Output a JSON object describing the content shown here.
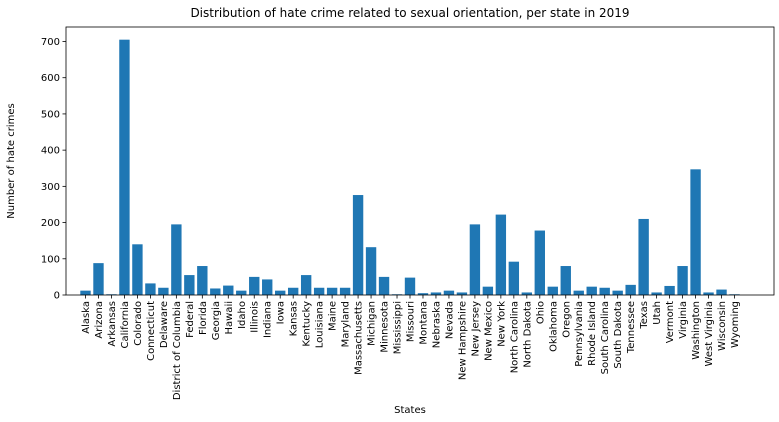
{
  "chart_data": {
    "type": "bar",
    "title": "Distribution of hate crime related to sexual orientation, per state in 2019",
    "xlabel": "States",
    "ylabel": "Number of hate crimes",
    "ylim": [
      0,
      740
    ],
    "yticks": [
      "0",
      "100",
      "200",
      "300",
      "400",
      "500",
      "600",
      "700"
    ],
    "grid": false,
    "bar_color": "#1f77b4",
    "categories": [
      "Alaska",
      "Arizona",
      "Arkansas",
      "California",
      "Colorado",
      "Connecticut",
      "Delaware",
      "District of Columbia",
      "Federal",
      "Florida",
      "Georgia",
      "Hawaii",
      "Idaho",
      "Illinois",
      "Indiana",
      "Iowa",
      "Kansas",
      "Kentucky",
      "Louisiana",
      "Maine",
      "Maryland",
      "Massachusetts",
      "Michigan",
      "Minnesota",
      "Mississippi",
      "Missouri",
      "Montana",
      "Nebraska",
      "Nevada",
      "New Hampshire",
      "New Jersey",
      "New Mexico",
      "New York",
      "North Carolina",
      "North Dakota",
      "Ohio",
      "Oklahoma",
      "Oregon",
      "Pennsylvania",
      "Rhode Island",
      "South Carolina",
      "South Dakota",
      "Tennessee",
      "Texas",
      "Utah",
      "Vermont",
      "Virginia",
      "Washington",
      "West Virginia",
      "Wisconsin",
      "Wyoming"
    ],
    "values": [
      12,
      88,
      2,
      705,
      140,
      32,
      20,
      195,
      55,
      80,
      18,
      26,
      12,
      50,
      43,
      12,
      20,
      55,
      20,
      20,
      20,
      276,
      132,
      50,
      2,
      48,
      5,
      7,
      12,
      7,
      195,
      23,
      222,
      92,
      7,
      178,
      23,
      80,
      12,
      23,
      20,
      12,
      28,
      210,
      7,
      25,
      80,
      347,
      7,
      15,
      2
    ]
  }
}
